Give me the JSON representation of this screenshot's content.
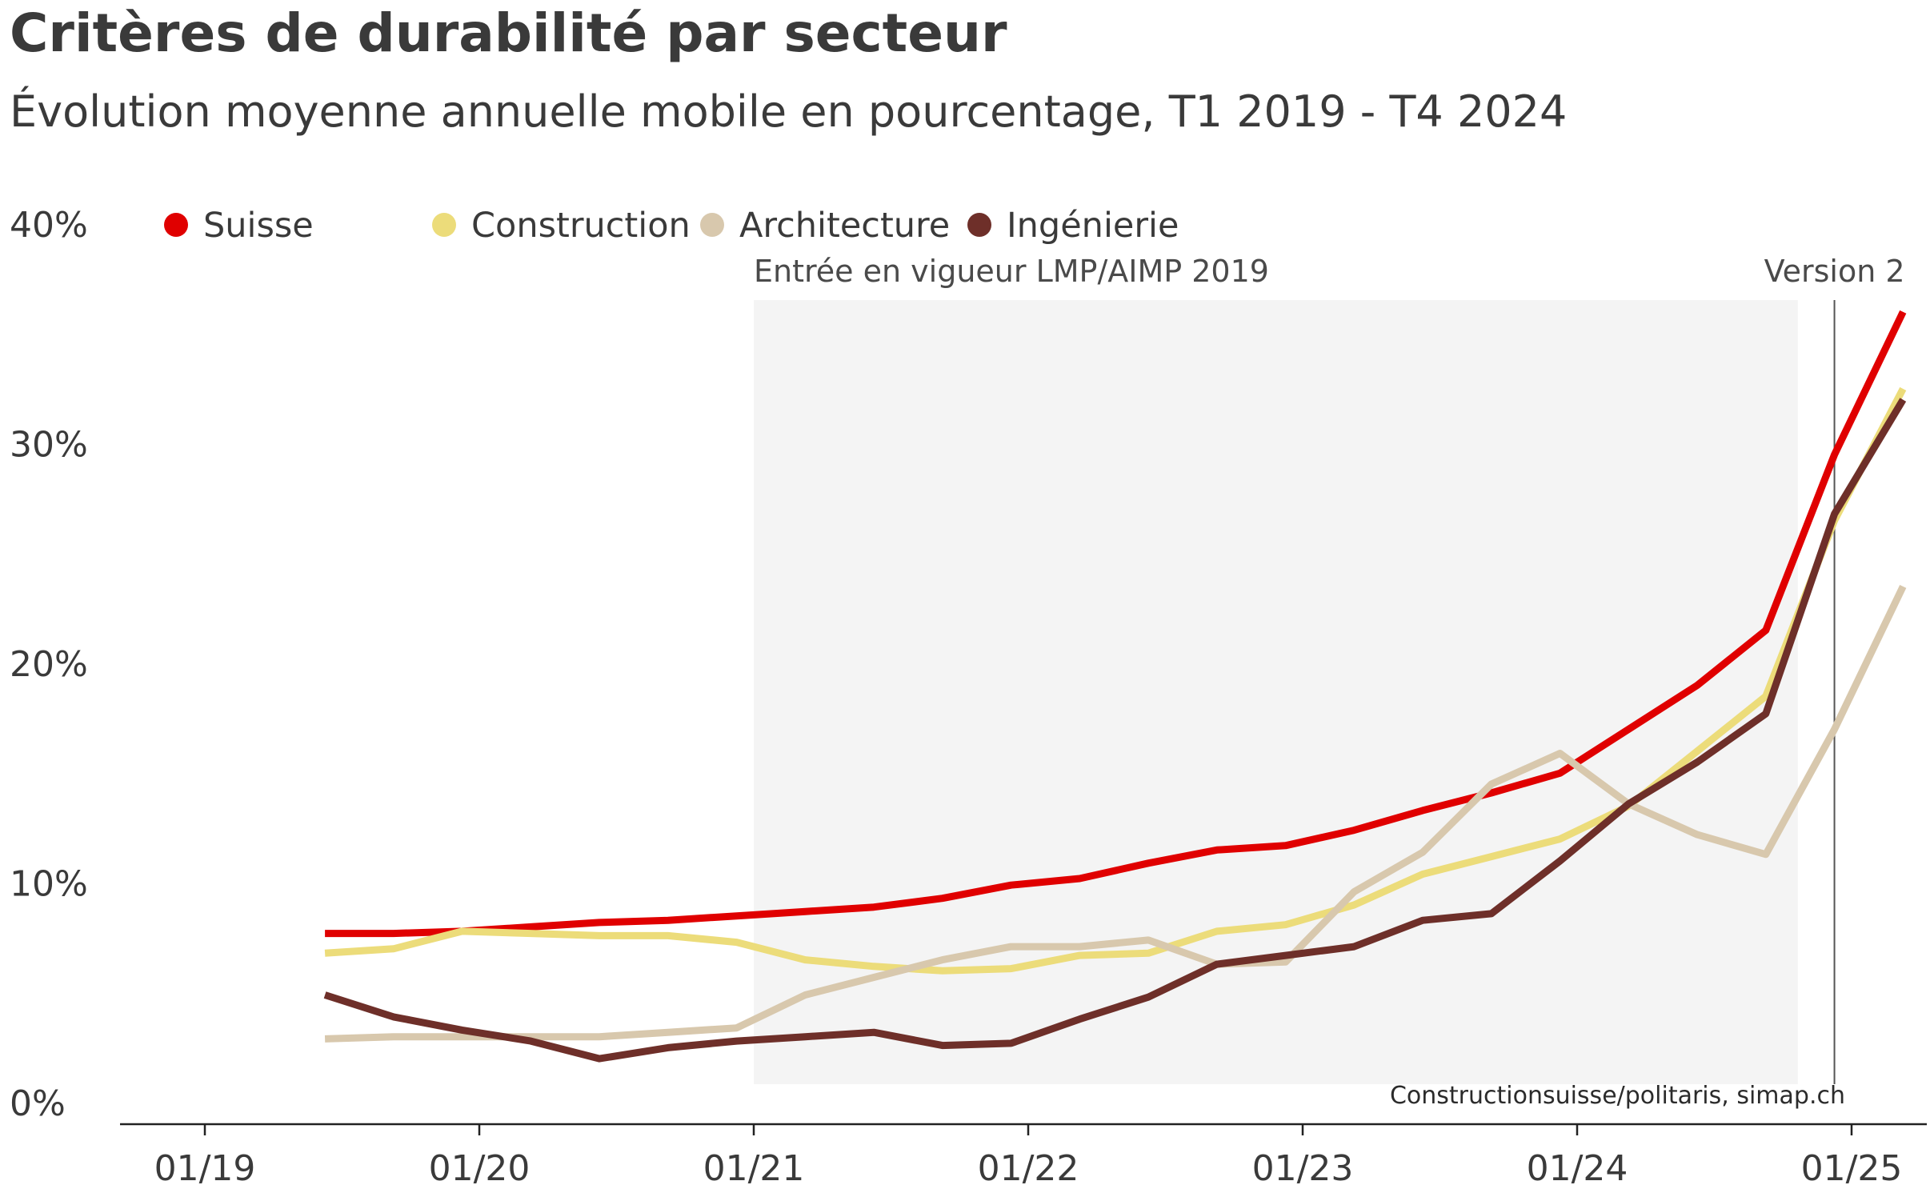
{
  "chart_data": {
    "type": "line",
    "title": "Critères de durabilité par secteur",
    "subtitle": "Évolution moyenne annuelle mobile en pourcentage, T1 2019 - T4 2024",
    "source": "Constructionsuisse/politaris, simap.ch",
    "x": [
      "T1 2019",
      "T2 2019",
      "T3 2019",
      "T4 2019",
      "T1 2020",
      "T2 2020",
      "T3 2020",
      "T4 2020",
      "T1 2021",
      "T2 2021",
      "T3 2021",
      "T4 2021",
      "T1 2022",
      "T2 2022",
      "T3 2022",
      "T4 2022",
      "T1 2023",
      "T2 2023",
      "T3 2023",
      "T4 2023",
      "T1 2024",
      "T2 2024",
      "T3 2024",
      "T4 2024"
    ],
    "x_ticks": [
      "01/19",
      "01/20",
      "01/21",
      "01/22",
      "01/23",
      "01/24",
      "01/25"
    ],
    "y_ticks": [
      "0%",
      "10%",
      "20%",
      "30%",
      "40%"
    ],
    "ylim": [
      0,
      40
    ],
    "legend_position": "top-left",
    "grid": false,
    "series": [
      {
        "name": "Suisse",
        "color": "#e00000",
        "values": [
          7.7,
          7.7,
          7.8,
          8.0,
          8.2,
          8.3,
          8.5,
          8.7,
          8.9,
          9.3,
          9.9,
          10.2,
          10.9,
          11.5,
          11.7,
          12.4,
          13.3,
          14.1,
          15.0,
          17.0,
          19.0,
          21.5,
          29.5,
          36.0
        ]
      },
      {
        "name": "Construction",
        "color": "#ecdc7a",
        "values": [
          6.8,
          7.0,
          7.8,
          7.7,
          7.6,
          7.6,
          7.3,
          6.5,
          6.2,
          6.0,
          6.1,
          6.7,
          6.8,
          7.8,
          8.1,
          9.0,
          10.4,
          11.2,
          12.0,
          13.5,
          16.0,
          18.5,
          26.5,
          32.5
        ]
      },
      {
        "name": "Architecture",
        "color": "#d8c8ad",
        "values": [
          2.9,
          3.0,
          3.0,
          3.0,
          3.0,
          3.2,
          3.4,
          4.9,
          5.7,
          6.5,
          7.1,
          7.1,
          7.4,
          6.3,
          6.4,
          9.6,
          11.4,
          14.5,
          15.9,
          13.6,
          12.2,
          11.3,
          17.0,
          23.5
        ]
      },
      {
        "name": "Ingénierie",
        "color": "#6e2f29",
        "values": [
          4.9,
          3.9,
          3.3,
          2.8,
          2.0,
          2.5,
          2.8,
          3.0,
          3.2,
          2.6,
          2.7,
          3.8,
          4.8,
          6.3,
          6.7,
          7.1,
          8.3,
          8.6,
          11.0,
          13.6,
          15.5,
          17.7,
          26.8,
          32.0
        ]
      }
    ],
    "annotations": [
      {
        "label": "Entrée en vigueur LMP/AIMP 2019",
        "type": "shaded-band",
        "from": "01/21",
        "to": "T2 2024"
      },
      {
        "label": "Version 2",
        "type": "vertical-line",
        "at": "T3 2024"
      }
    ]
  }
}
